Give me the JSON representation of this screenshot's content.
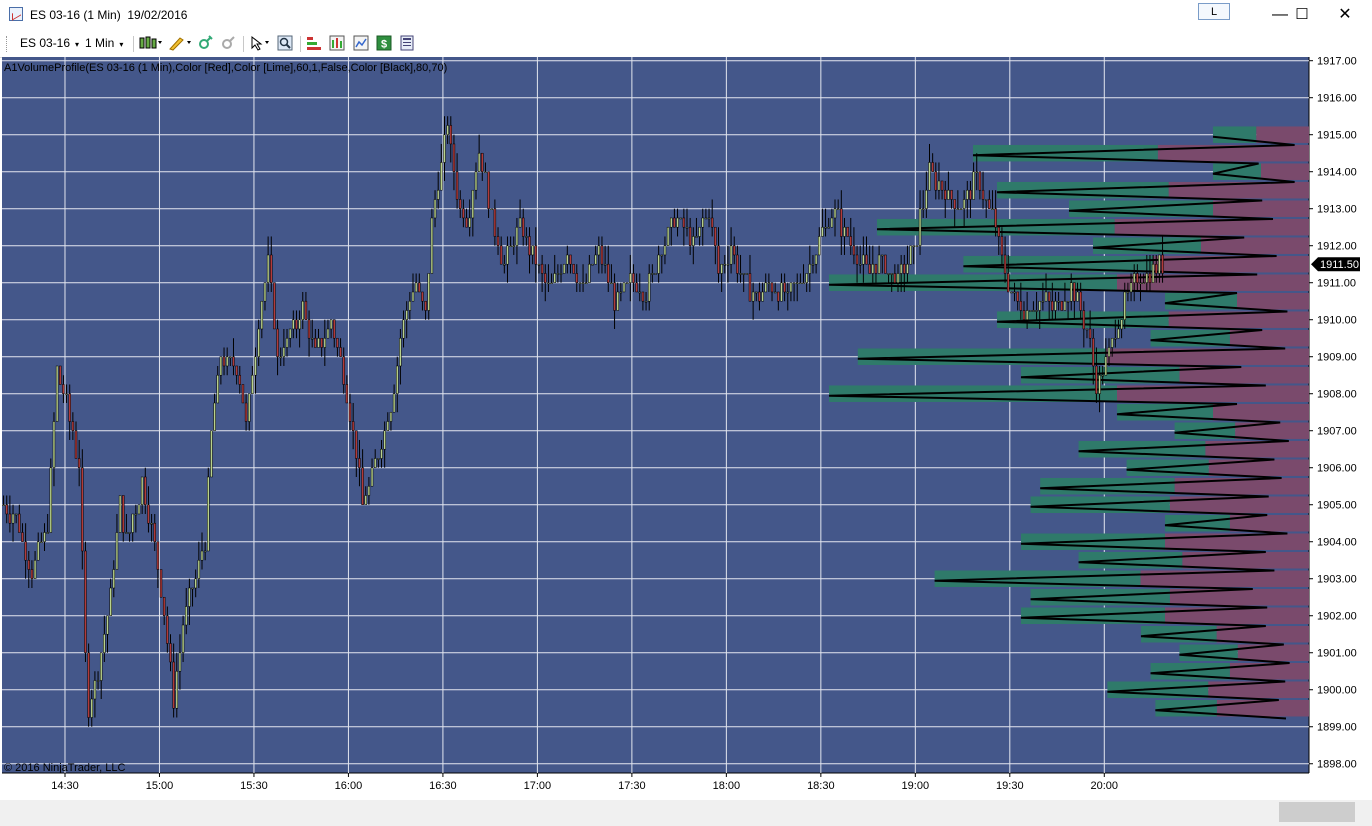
{
  "window": {
    "title": "ES 03-16 (1 Min)  19/02/2016",
    "link_button": "L",
    "minimize_glyph": "—",
    "maximize_glyph": "☐",
    "close_glyph": "✕"
  },
  "toolbar": {
    "instrument": "ES 03-16",
    "interval": "1 Min",
    "caret": "▾",
    "icons": [
      "bar-type-icon",
      "drawing-tool-icon",
      "crosshair-icon",
      "zoom-icon",
      "zoom-out-icon",
      "indicators-icon",
      "strategies-icon",
      "chart-properties-icon",
      "dollar-icon",
      "data-box-icon"
    ]
  },
  "chart": {
    "indicator_label": "A1VolumeProfile(ES 03-16 (1 Min),Color [Red],Color [Lime],60,1,False,Color [Black],80,70)",
    "copyright": "© 2016 NinjaTrader, LLC",
    "last_price_label": "1911.50",
    "colors": {
      "background": "#44578a",
      "grid": "#e3e6ef",
      "up_body": "#b9d28b",
      "down_body": "#b23a3a",
      "wick": "#000000",
      "profile_up": "#2f7a6a",
      "profile_down": "#7a4a6c",
      "profile_line": "#000000"
    }
  },
  "chart_data": {
    "type": "candlestick with volume profile",
    "instrument": "ES 03-16",
    "interval": "1 Min",
    "x_ticks": [
      "14:30",
      "15:00",
      "15:30",
      "16:00",
      "16:30",
      "17:00",
      "17:30",
      "18:00",
      "18:30",
      "19:00",
      "19:30",
      "20:00"
    ],
    "y_ticks": [
      "1917.00",
      "1916.00",
      "1915.00",
      "1914.00",
      "1913.00",
      "1912.00",
      "1911.00",
      "1910.00",
      "1909.00",
      "1908.00",
      "1907.00",
      "1906.00",
      "1905.00",
      "1904.00",
      "1903.00",
      "1902.00",
      "1901.00",
      "1900.00",
      "1899.00",
      "1898.00"
    ],
    "ylim": [
      1897.75,
      1917.1
    ],
    "x_range": [
      "14:10",
      "21:05"
    ],
    "last_price": 1911.5,
    "price_path": [
      [
        "14:10",
        1905.0
      ],
      [
        "14:15",
        1904.6
      ],
      [
        "14:20",
        1903.1
      ],
      [
        "14:25",
        1904.5
      ],
      [
        "14:28",
        1908.6
      ],
      [
        "14:31",
        1907.8
      ],
      [
        "14:35",
        1906.0
      ],
      [
        "14:37",
        1901.0
      ],
      [
        "14:38",
        1899.4
      ],
      [
        "14:42",
        1901.0
      ],
      [
        "14:45",
        1902.6
      ],
      [
        "14:48",
        1905.0
      ],
      [
        "14:50",
        1904.0
      ],
      [
        "14:55",
        1905.6
      ],
      [
        "14:59",
        1904.0
      ],
      [
        "15:02",
        1902.0
      ],
      [
        "15:05",
        1899.8
      ],
      [
        "15:08",
        1901.8
      ],
      [
        "15:12",
        1903.0
      ],
      [
        "15:15",
        1904.0
      ],
      [
        "15:17",
        1907.0
      ],
      [
        "15:20",
        1909.0
      ],
      [
        "15:25",
        1908.8
      ],
      [
        "15:28",
        1907.2
      ],
      [
        "15:32",
        1910.0
      ],
      [
        "15:35",
        1911.6
      ],
      [
        "15:38",
        1909.0
      ],
      [
        "15:42",
        1909.6
      ],
      [
        "15:46",
        1910.3
      ],
      [
        "15:50",
        1909.0
      ],
      [
        "15:55",
        1910.0
      ],
      [
        "15:59",
        1908.5
      ],
      [
        "16:02",
        1907.0
      ],
      [
        "16:05",
        1905.0
      ],
      [
        "16:08",
        1905.8
      ],
      [
        "16:12",
        1907.0
      ],
      [
        "16:15",
        1908.2
      ],
      [
        "16:18",
        1910.0
      ],
      [
        "16:22",
        1911.0
      ],
      [
        "16:25",
        1910.0
      ],
      [
        "16:27",
        1912.6
      ],
      [
        "16:30",
        1914.2
      ],
      [
        "16:32",
        1915.3
      ],
      [
        "16:35",
        1913.3
      ],
      [
        "16:38",
        1912.6
      ],
      [
        "16:42",
        1914.6
      ],
      [
        "16:46",
        1912.8
      ],
      [
        "16:50",
        1911.5
      ],
      [
        "16:55",
        1912.5
      ],
      [
        "17:00",
        1911.5
      ],
      [
        "17:05",
        1910.8
      ],
      [
        "17:10",
        1911.8
      ],
      [
        "17:15",
        1910.9
      ],
      [
        "17:20",
        1911.9
      ],
      [
        "17:25",
        1910.5
      ],
      [
        "17:30",
        1911.0
      ],
      [
        "17:35",
        1910.8
      ],
      [
        "17:40",
        1911.9
      ],
      [
        "17:45",
        1912.8
      ],
      [
        "17:50",
        1912.0
      ],
      [
        "17:55",
        1913.0
      ],
      [
        "17:58",
        1911.2
      ],
      [
        "18:02",
        1912.0
      ],
      [
        "18:05",
        1911.2
      ],
      [
        "18:10",
        1910.5
      ],
      [
        "18:15",
        1911.0
      ],
      [
        "18:20",
        1910.6
      ],
      [
        "18:25",
        1911.2
      ],
      [
        "18:30",
        1912.2
      ],
      [
        "18:35",
        1912.9
      ],
      [
        "18:40",
        1912.0
      ],
      [
        "18:45",
        1911.3
      ],
      [
        "18:50",
        1911.6
      ],
      [
        "18:55",
        1911.0
      ],
      [
        "19:00",
        1911.9
      ],
      [
        "19:05",
        1914.0
      ],
      [
        "19:10",
        1913.4
      ],
      [
        "19:15",
        1913.0
      ],
      [
        "19:20",
        1913.8
      ],
      [
        "19:25",
        1912.8
      ],
      [
        "19:30",
        1911.0
      ],
      [
        "19:35",
        1910.2
      ],
      [
        "19:40",
        1910.6
      ],
      [
        "19:45",
        1910.3
      ],
      [
        "19:50",
        1910.9
      ],
      [
        "19:55",
        1909.8
      ],
      [
        "19:58",
        1908.3
      ],
      [
        "20:02",
        1909.0
      ],
      [
        "20:05",
        1910.0
      ],
      [
        "20:10",
        1911.0
      ],
      [
        "20:15",
        1911.3
      ],
      [
        "20:18",
        1911.5
      ]
    ],
    "volume_profile": {
      "price_levels": [
        1915.0,
        1914.5,
        1914.0,
        1913.5,
        1913.0,
        1912.5,
        1912.0,
        1911.5,
        1911.0,
        1910.5,
        1910.0,
        1909.5,
        1909.0,
        1908.5,
        1908.0,
        1907.5,
        1907.0,
        1906.5,
        1906.0,
        1905.5,
        1905.0,
        1904.5,
        1904.0,
        1903.5,
        1903.0,
        1902.5,
        1902.0,
        1901.5,
        1901.0,
        1900.5,
        1900.0,
        1899.5
      ],
      "relative_volume": [
        0.2,
        0.7,
        0.2,
        0.65,
        0.5,
        0.9,
        0.45,
        0.72,
        1.0,
        0.3,
        0.65,
        0.33,
        0.94,
        0.6,
        1.0,
        0.4,
        0.28,
        0.48,
        0.38,
        0.56,
        0.58,
        0.3,
        0.6,
        0.48,
        0.78,
        0.58,
        0.6,
        0.35,
        0.27,
        0.33,
        0.42,
        0.32
      ],
      "up_fraction": [
        0.45,
        0.55,
        0.5,
        0.55,
        0.6,
        0.55,
        0.5,
        0.55,
        0.6,
        0.5,
        0.55,
        0.5,
        0.55,
        0.55,
        0.6,
        0.5,
        0.45,
        0.55,
        0.45,
        0.5,
        0.5,
        0.45,
        0.5,
        0.45,
        0.55,
        0.5,
        0.5,
        0.45,
        0.45,
        0.5,
        0.5,
        0.4
      ]
    }
  }
}
